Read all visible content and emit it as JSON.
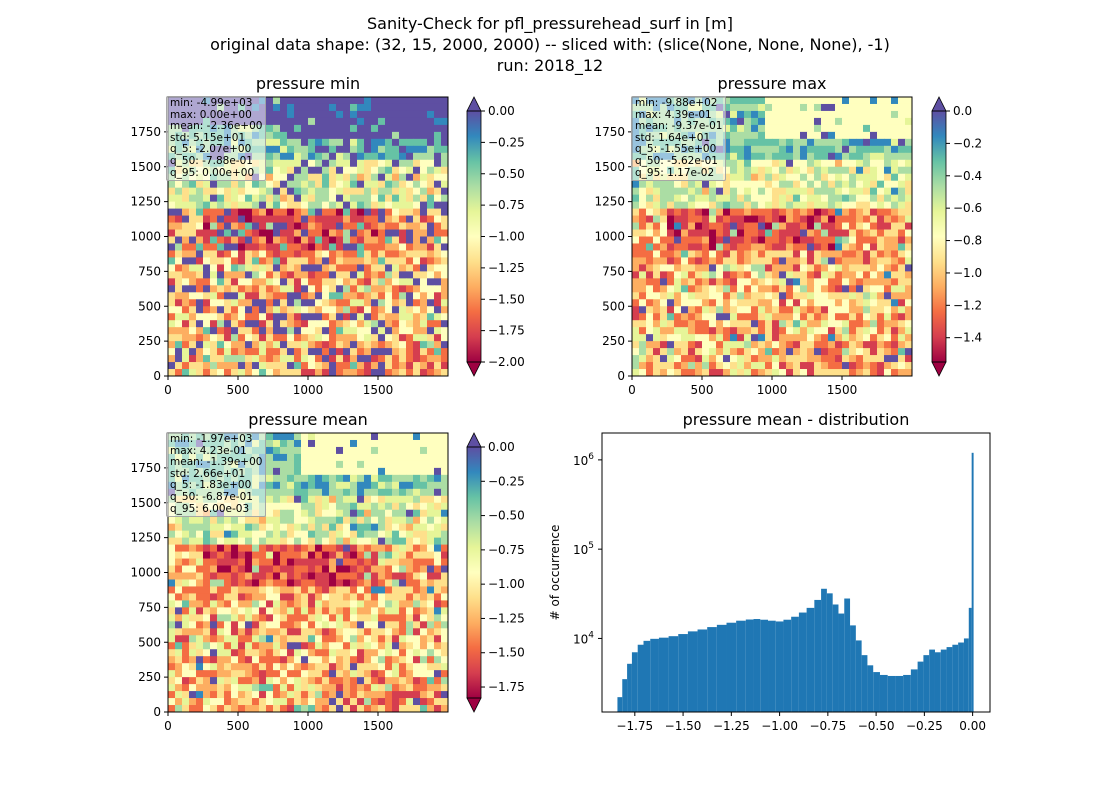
{
  "suptitle": {
    "line1": "Sanity-Check for pfl_pressurehead_surf in [m]",
    "line2": "original data shape: (32, 15, 2000, 2000) -- sliced with: (slice(None, None, None), -1)",
    "line3": "run: 2018_12"
  },
  "colormap": {
    "name": "Spectral",
    "stops": [
      "#9e0142",
      "#d53e4f",
      "#f46d43",
      "#fdae61",
      "#fee08b",
      "#ffffbf",
      "#e6f598",
      "#abdda4",
      "#66c2a5",
      "#3288bd",
      "#5e4fa2"
    ]
  },
  "chart_data": [
    {
      "type": "heatmap",
      "title": "pressure min",
      "x_ticks": [
        "0",
        "500",
        "1000",
        "1500"
      ],
      "y_ticks": [
        "0",
        "250",
        "500",
        "750",
        "1000",
        "1250",
        "1500",
        "1750"
      ],
      "xlim": [
        0,
        2000
      ],
      "ylim": [
        0,
        2000
      ],
      "colorbar": {
        "vmin": -2.0,
        "vmax": 0.0,
        "extend": "both",
        "ticks": [
          "0.00",
          "−0.25",
          "−0.50",
          "−0.75",
          "−1.00",
          "−1.25",
          "−1.50",
          "−1.75",
          "−2.00"
        ]
      },
      "stats": [
        "min: -4.99e+03",
        "max: 0.00e+00",
        "mean: -2.36e+00",
        "std: 5.15e+01",
        "q_5: -2.07e+00",
        "q_50: -7.88e-01",
        "q_95: 0.00e+00"
      ]
    },
    {
      "type": "heatmap",
      "title": "pressure max",
      "x_ticks": [
        "0",
        "500",
        "1000",
        "1500"
      ],
      "y_ticks": [
        "0",
        "250",
        "500",
        "750",
        "1000",
        "1250",
        "1500",
        "1750"
      ],
      "xlim": [
        0,
        2000
      ],
      "ylim": [
        0,
        2000
      ],
      "colorbar": {
        "vmin": -1.55,
        "vmax": 0.0,
        "extend": "both",
        "ticks": [
          "0.0",
          "−0.2",
          "−0.4",
          "−0.6",
          "−0.8",
          "−1.0",
          "−1.2",
          "−1.4"
        ]
      },
      "stats": [
        "min: -9.88e+02",
        "max: 4.39e-01",
        "mean: -9.37e-01",
        "std: 1.64e+01",
        "q_5: -1.55e+00",
        "q_50: -5.62e-01",
        "q_95: 1.17e-02"
      ]
    },
    {
      "type": "heatmap",
      "title": "pressure mean",
      "x_ticks": [
        "0",
        "500",
        "1000",
        "1500"
      ],
      "y_ticks": [
        "0",
        "250",
        "500",
        "750",
        "1000",
        "1250",
        "1500",
        "1750"
      ],
      "xlim": [
        0,
        2000
      ],
      "ylim": [
        0,
        2000
      ],
      "colorbar": {
        "vmin": -1.83,
        "vmax": 0.0,
        "extend": "both",
        "ticks": [
          "0.00",
          "−0.25",
          "−0.50",
          "−0.75",
          "−1.00",
          "−1.25",
          "−1.50",
          "−1.75"
        ]
      },
      "stats": [
        "min: -1.97e+03",
        "max: 4.23e-01",
        "mean: -1.39e+00",
        "std: 2.66e+01",
        "q_5: -1.83e+00",
        "q_50: -6.87e-01",
        "q_95: 6.00e-03"
      ]
    },
    {
      "type": "bar",
      "title": "pressure mean - distribution",
      "ylabel": "# of occurrence",
      "xlabel": "",
      "yscale": "log",
      "xlim": [
        -1.92,
        0.09
      ],
      "ylim": [
        1500,
        2000000
      ],
      "bar_color": "#1f77b4",
      "x_ticks": [
        "−1.75",
        "−1.50",
        "−1.25",
        "−1.00",
        "−0.75",
        "−0.50",
        "−0.25",
        "0.00"
      ],
      "y_ticks": [
        "10^4",
        "10^5",
        "10^6"
      ],
      "bins": [
        {
          "x": -1.83,
          "count": 2200
        },
        {
          "x": -1.8,
          "count": 3500
        },
        {
          "x": -1.78,
          "count": 5200
        },
        {
          "x": -1.75,
          "count": 7000
        },
        {
          "x": -1.72,
          "count": 8500
        },
        {
          "x": -1.69,
          "count": 9400
        },
        {
          "x": -1.65,
          "count": 9900
        },
        {
          "x": -1.6,
          "count": 10200
        },
        {
          "x": -1.55,
          "count": 10600
        },
        {
          "x": -1.5,
          "count": 11200
        },
        {
          "x": -1.45,
          "count": 12000
        },
        {
          "x": -1.4,
          "count": 12600
        },
        {
          "x": -1.35,
          "count": 13400
        },
        {
          "x": -1.3,
          "count": 14200
        },
        {
          "x": -1.25,
          "count": 15000
        },
        {
          "x": -1.2,
          "count": 15800
        },
        {
          "x": -1.15,
          "count": 16300
        },
        {
          "x": -1.12,
          "count": 16500
        },
        {
          "x": -1.08,
          "count": 16200
        },
        {
          "x": -1.04,
          "count": 15800
        },
        {
          "x": -1.0,
          "count": 15500
        },
        {
          "x": -0.96,
          "count": 16200
        },
        {
          "x": -0.92,
          "count": 17500
        },
        {
          "x": -0.88,
          "count": 19500
        },
        {
          "x": -0.84,
          "count": 22000
        },
        {
          "x": -0.8,
          "count": 27000
        },
        {
          "x": -0.77,
          "count": 36000
        },
        {
          "x": -0.74,
          "count": 32000
        },
        {
          "x": -0.71,
          "count": 24000
        },
        {
          "x": -0.68,
          "count": 19000
        },
        {
          "x": -0.65,
          "count": 28000
        },
        {
          "x": -0.62,
          "count": 14000
        },
        {
          "x": -0.59,
          "count": 9500
        },
        {
          "x": -0.56,
          "count": 6500
        },
        {
          "x": -0.53,
          "count": 5000
        },
        {
          "x": -0.5,
          "count": 4200
        },
        {
          "x": -0.46,
          "count": 3900
        },
        {
          "x": -0.42,
          "count": 3800
        },
        {
          "x": -0.38,
          "count": 3800
        },
        {
          "x": -0.34,
          "count": 3900
        },
        {
          "x": -0.3,
          "count": 4500
        },
        {
          "x": -0.27,
          "count": 5500
        },
        {
          "x": -0.24,
          "count": 6500
        },
        {
          "x": -0.21,
          "count": 7500
        },
        {
          "x": -0.18,
          "count": 7000
        },
        {
          "x": -0.15,
          "count": 7500
        },
        {
          "x": -0.12,
          "count": 8000
        },
        {
          "x": -0.09,
          "count": 8500
        },
        {
          "x": -0.06,
          "count": 9000
        },
        {
          "x": -0.03,
          "count": 10000
        },
        {
          "x": -0.01,
          "count": 22000
        },
        {
          "x": 0.0,
          "count": 1200000
        }
      ]
    }
  ]
}
